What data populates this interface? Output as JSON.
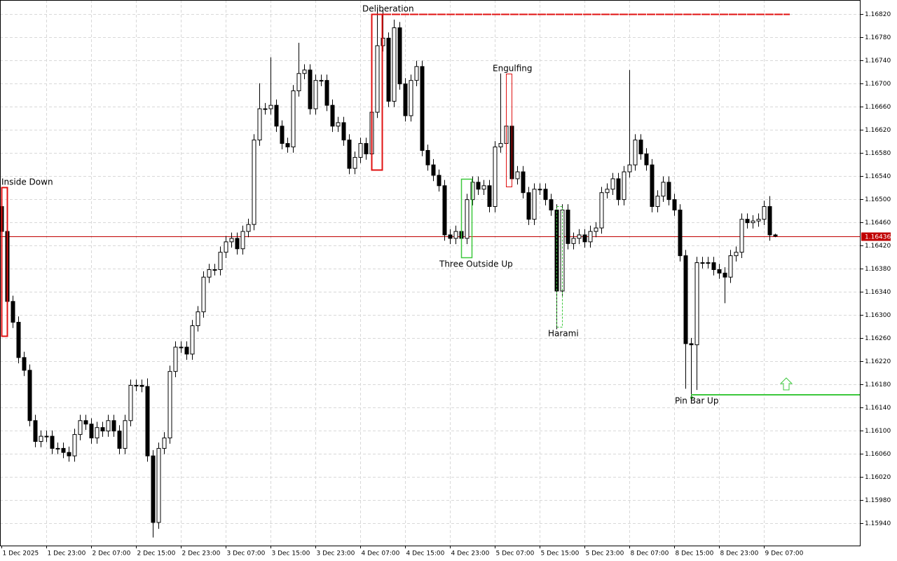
{
  "chart_data": {
    "type": "candlestick",
    "xlim": [
      -0.25,
      153.25
    ],
    "xticks": [
      {
        "value": 0,
        "label": "1 Dec 2025"
      },
      {
        "value": 8,
        "label": "1 Dec 23:00"
      },
      {
        "value": 16,
        "label": "2 Dec 07:00"
      },
      {
        "value": 24,
        "label": "2 Dec 15:00"
      },
      {
        "value": 32,
        "label": "2 Dec 23:00"
      },
      {
        "value": 40,
        "label": "3 Dec 07:00"
      },
      {
        "value": 48,
        "label": "3 Dec 15:00"
      },
      {
        "value": 56,
        "label": "3 Dec 23:00"
      },
      {
        "value": 64,
        "label": "4 Dec 07:00"
      },
      {
        "value": 72,
        "label": "4 Dec 15:00"
      },
      {
        "value": 80,
        "label": "4 Dec 23:00"
      },
      {
        "value": 88,
        "label": "5 Dec 07:00"
      },
      {
        "value": 96,
        "label": "5 Dec 15:00"
      },
      {
        "value": 104,
        "label": "5 Dec 23:00"
      },
      {
        "value": 112,
        "label": "8 Dec 07:00"
      },
      {
        "value": 120,
        "label": "8 Dec 15:00"
      },
      {
        "value": 128,
        "label": "8 Dec 23:00"
      },
      {
        "value": 136,
        "label": "9 Dec 07:00"
      }
    ],
    "ylim": [
      1.15901,
      1.16844
    ],
    "yticks": [
      {
        "value": 1.1682,
        "label": "1.16820"
      },
      {
        "value": 1.1678,
        "label": "1.16780"
      },
      {
        "value": 1.1674,
        "label": "1.16740"
      },
      {
        "value": 1.167,
        "label": "1.16700"
      },
      {
        "value": 1.1666,
        "label": "1.16660"
      },
      {
        "value": 1.1662,
        "label": "1.16620"
      },
      {
        "value": 1.1658,
        "label": "1.16580"
      },
      {
        "value": 1.1654,
        "label": "1.16540"
      },
      {
        "value": 1.165,
        "label": "1.16500"
      },
      {
        "value": 1.1646,
        "label": "1.16460"
      },
      {
        "value": 1.1642,
        "label": "1.16420"
      },
      {
        "value": 1.1638,
        "label": "1.16380"
      },
      {
        "value": 1.1634,
        "label": "1.16340"
      },
      {
        "value": 1.163,
        "label": "1.16300"
      },
      {
        "value": 1.1626,
        "label": "1.16260"
      },
      {
        "value": 1.1622,
        "label": "1.16220"
      },
      {
        "value": 1.1618,
        "label": "1.16180"
      },
      {
        "value": 1.1614,
        "label": "1.16140"
      },
      {
        "value": 1.161,
        "label": "1.16100"
      },
      {
        "value": 1.1606,
        "label": "1.16060"
      },
      {
        "value": 1.1602,
        "label": "1.16020"
      },
      {
        "value": 1.1598,
        "label": "1.15980"
      },
      {
        "value": 1.1594,
        "label": "1.15940"
      }
    ],
    "grid": true,
    "up_color": "#ffffff",
    "down_color": "#000000",
    "wick_color": "#000000",
    "last_price": 1.16436,
    "last_price_color": "#c00000",
    "open": [
      1.16487,
      1.16444,
      1.16323,
      1.16287,
      1.16226,
      1.16204,
      1.16117,
      1.16081,
      1.1609,
      1.1609,
      1.16069,
      1.16069,
      1.16062,
      1.16056,
      1.16093,
      1.16117,
      1.16111,
      1.16087,
      1.16105,
      1.16099,
      1.16117,
      1.16099,
      1.16069,
      1.16117,
      1.16178,
      1.16178,
      1.16176,
      1.16056,
      1.15941,
      1.16069,
      1.16087,
      1.16202,
      1.16244,
      1.16244,
      1.16232,
      1.16281,
      1.16305,
      1.16365,
      1.16378,
      1.16378,
      1.16408,
      1.16426,
      1.16432,
      1.16414,
      1.16444,
      1.16456,
      1.16602,
      1.16656,
      1.16656,
      1.16662,
      1.16626,
      1.16596,
      1.1659,
      1.16687,
      1.16717,
      1.16723,
      1.16656,
      1.16705,
      1.16705,
      1.16662,
      1.16626,
      1.16632,
      1.16602,
      1.16553,
      1.16572,
      1.16596,
      1.16578,
      1.1665,
      1.16765,
      1.16778,
      1.16669,
      1.16796,
      1.16699,
      1.16644,
      1.16705,
      1.16729,
      1.16584,
      1.16559,
      1.16541,
      1.16523,
      1.16438,
      1.16432,
      1.16444,
      1.16432,
      1.16499,
      1.16529,
      1.16517,
      1.16523,
      1.16487,
      1.1659,
      1.16596,
      1.16626,
      1.16535,
      1.16547,
      1.16511,
      1.16465,
      1.16517,
      1.16517,
      1.16499,
      1.16481,
      1.16341,
      1.16481,
      1.16423,
      1.16432,
      1.16438,
      1.16426,
      1.16444,
      1.1645,
      1.16511,
      1.16517,
      1.16535,
      1.16499,
      1.16547,
      1.16559,
      1.16602,
      1.16578,
      1.16559,
      1.16487,
      1.16505,
      1.16529,
      1.16499,
      1.16481,
      1.16402,
      1.1625,
      1.16248,
      1.1639,
      1.1639,
      1.1639,
      1.16378,
      1.16372,
      1.16365,
      1.16402,
      1.16408,
      1.16465,
      1.16459,
      1.16462,
      1.16465,
      1.16487,
      1.16438
    ],
    "high": [
      1.1652,
      1.16454,
      1.16333,
      1.16297,
      1.16236,
      1.16214,
      1.16127,
      1.161,
      1.161,
      1.161,
      1.16079,
      1.16079,
      1.16072,
      1.16103,
      1.16127,
      1.16127,
      1.16121,
      1.16115,
      1.16115,
      1.16127,
      1.16127,
      1.16109,
      1.16127,
      1.16188,
      1.16188,
      1.16188,
      1.1619,
      1.16066,
      1.16079,
      1.16097,
      1.16212,
      1.16254,
      1.16254,
      1.16254,
      1.16291,
      1.16315,
      1.16375,
      1.16388,
      1.16388,
      1.16418,
      1.16436,
      1.16442,
      1.16442,
      1.16454,
      1.16466,
      1.16612,
      1.167,
      1.16666,
      1.16745,
      1.16672,
      1.16636,
      1.16606,
      1.16697,
      1.1677,
      1.16733,
      1.16733,
      1.16715,
      1.16715,
      1.16715,
      1.16672,
      1.16642,
      1.16642,
      1.16612,
      1.16582,
      1.16606,
      1.16606,
      1.1669,
      1.1683,
      1.1683,
      1.16788,
      1.1681,
      1.16806,
      1.16709,
      1.16715,
      1.16739,
      1.16739,
      1.16594,
      1.16569,
      1.16551,
      1.16533,
      1.16448,
      1.16454,
      1.16454,
      1.16509,
      1.16539,
      1.16539,
      1.16533,
      1.16533,
      1.166,
      1.16717,
      1.16636,
      1.16636,
      1.16557,
      1.16557,
      1.16521,
      1.16527,
      1.16527,
      1.16527,
      1.16509,
      1.16491,
      1.16491,
      1.16491,
      1.16442,
      1.16448,
      1.16448,
      1.16454,
      1.1646,
      1.16521,
      1.16527,
      1.16545,
      1.16545,
      1.16557,
      1.16723,
      1.16612,
      1.16612,
      1.16588,
      1.16569,
      1.16515,
      1.16539,
      1.16539,
      1.16509,
      1.16491,
      1.16412,
      1.1626,
      1.164,
      1.164,
      1.164,
      1.164,
      1.16388,
      1.16382,
      1.16412,
      1.16418,
      1.16475,
      1.16475,
      1.16472,
      1.16475,
      1.16497,
      1.16505,
      1.1644
    ],
    "low": [
      1.16434,
      1.163,
      1.16277,
      1.16216,
      1.16194,
      1.16107,
      1.16071,
      1.16071,
      1.1608,
      1.16059,
      1.16059,
      1.16052,
      1.16046,
      1.16046,
      1.16083,
      1.16101,
      1.16077,
      1.16077,
      1.16089,
      1.16089,
      1.16089,
      1.16059,
      1.16059,
      1.16107,
      1.16168,
      1.16166,
      1.16046,
      1.15915,
      1.1593,
      1.16059,
      1.16077,
      1.16192,
      1.16234,
      1.16222,
      1.16222,
      1.16271,
      1.16295,
      1.16355,
      1.16368,
      1.16368,
      1.16398,
      1.16416,
      1.16404,
      1.16404,
      1.16434,
      1.16446,
      1.16592,
      1.16646,
      1.16646,
      1.16616,
      1.16586,
      1.1658,
      1.1658,
      1.16677,
      1.16707,
      1.16646,
      1.16646,
      1.16695,
      1.16652,
      1.16616,
      1.16616,
      1.16592,
      1.16543,
      1.16543,
      1.16562,
      1.16568,
      1.16568,
      1.1664,
      1.16755,
      1.16659,
      1.16659,
      1.16689,
      1.16634,
      1.16634,
      1.16695,
      1.16574,
      1.16549,
      1.16531,
      1.16513,
      1.16428,
      1.16422,
      1.16422,
      1.16422,
      1.16422,
      1.16489,
      1.16507,
      1.16507,
      1.16477,
      1.16477,
      1.1658,
      1.16586,
      1.16525,
      1.16525,
      1.16501,
      1.16455,
      1.16455,
      1.16507,
      1.16489,
      1.16471,
      1.16275,
      1.16331,
      1.16413,
      1.16413,
      1.16422,
      1.16416,
      1.16416,
      1.16434,
      1.1644,
      1.16501,
      1.16507,
      1.16489,
      1.16489,
      1.16537,
      1.16549,
      1.16568,
      1.16549,
      1.16477,
      1.16477,
      1.16495,
      1.16489,
      1.16471,
      1.16392,
      1.16172,
      1.16159,
      1.1617,
      1.1638,
      1.1638,
      1.16368,
      1.16362,
      1.1632,
      1.16355,
      1.16392,
      1.16398,
      1.16449,
      1.16449,
      1.16452,
      1.16455,
      1.16428,
      1.16434
    ],
    "close": [
      1.16444,
      1.16323,
      1.16287,
      1.16226,
      1.16204,
      1.16117,
      1.16081,
      1.1609,
      1.1609,
      1.16069,
      1.16069,
      1.16062,
      1.16056,
      1.16093,
      1.16117,
      1.16111,
      1.16087,
      1.16105,
      1.16099,
      1.16117,
      1.16099,
      1.16069,
      1.16117,
      1.16178,
      1.16178,
      1.16176,
      1.16056,
      1.15941,
      1.16069,
      1.16087,
      1.16202,
      1.16244,
      1.16244,
      1.16232,
      1.16281,
      1.16305,
      1.16365,
      1.16378,
      1.16378,
      1.16408,
      1.16426,
      1.16432,
      1.16414,
      1.16444,
      1.16456,
      1.16602,
      1.16656,
      1.16656,
      1.16662,
      1.16626,
      1.16596,
      1.1659,
      1.16687,
      1.16717,
      1.16723,
      1.16656,
      1.16705,
      1.16705,
      1.16662,
      1.16626,
      1.16632,
      1.16602,
      1.16553,
      1.16572,
      1.16596,
      1.16578,
      1.1665,
      1.16765,
      1.16778,
      1.16669,
      1.16796,
      1.16699,
      1.16644,
      1.16705,
      1.16729,
      1.16584,
      1.16559,
      1.16541,
      1.16523,
      1.16438,
      1.16432,
      1.16444,
      1.16432,
      1.16499,
      1.16529,
      1.16517,
      1.16523,
      1.16487,
      1.1659,
      1.16596,
      1.16626,
      1.16535,
      1.16547,
      1.16511,
      1.16465,
      1.16517,
      1.16517,
      1.16499,
      1.16481,
      1.16341,
      1.16481,
      1.16423,
      1.16432,
      1.16438,
      1.16426,
      1.16444,
      1.1645,
      1.16511,
      1.16517,
      1.16535,
      1.16499,
      1.16547,
      1.16559,
      1.16602,
      1.16578,
      1.16559,
      1.16487,
      1.16505,
      1.16529,
      1.16499,
      1.16481,
      1.16402,
      1.1625,
      1.16248,
      1.1639,
      1.1639,
      1.1639,
      1.16378,
      1.16372,
      1.16365,
      1.16402,
      1.16408,
      1.16465,
      1.16459,
      1.16462,
      1.16465,
      1.16487,
      1.16438,
      1.16436
    ],
    "annotations": [
      {
        "text": "Inside Down",
        "color": "#e01010"
      },
      {
        "text": "Deliberation",
        "color": "#e01010"
      },
      {
        "text": "Engulfing",
        "color": "#e01010"
      },
      {
        "text": "Three Outside Up",
        "color": "#3cc83c"
      },
      {
        "text": "Harami",
        "color": "#3cc83c"
      },
      {
        "text": "Pin Bar Up",
        "color": "#3cc83c"
      }
    ]
  }
}
